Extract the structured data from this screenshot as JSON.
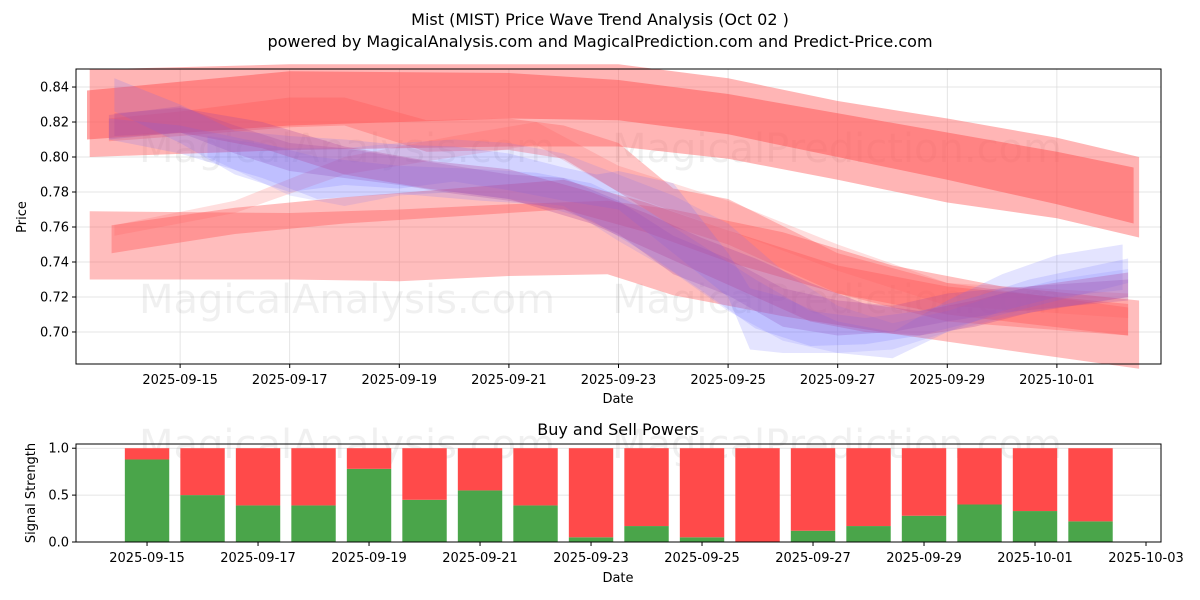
{
  "header": {
    "title": "Mist (MIST) Price Wave Trend Analysis (Oct 02 )",
    "subtitle": "powered by MagicalAnalysis.com and MagicalPrediction.com and Predict-Price.com"
  },
  "watermarks": [
    "MagicalAnalysis.com",
    "MagicalPrediction.com"
  ],
  "colors": {
    "sell_red": "#ff4a4a",
    "buy_green": "#4aa54a",
    "wave_red": "#ff5a5a",
    "wave_blue": "#6a6aff",
    "grid": "#dddddd"
  },
  "chart_data": [
    {
      "type": "area",
      "title": "",
      "xlabel": "Date",
      "ylabel": "Price",
      "x_start_date": "2025-09-15",
      "x_unit": "days since 2025-09-15",
      "xlim": [
        -1.9,
        17.9
      ],
      "ylim": [
        0.6817,
        0.8503
      ],
      "grid": true,
      "xticks": [
        {
          "x": 0,
          "label": "2025-09-15"
        },
        {
          "x": 2,
          "label": "2025-09-17"
        },
        {
          "x": 4,
          "label": "2025-09-19"
        },
        {
          "x": 6,
          "label": "2025-09-21"
        },
        {
          "x": 8,
          "label": "2025-09-23"
        },
        {
          "x": 10,
          "label": "2025-09-25"
        },
        {
          "x": 12,
          "label": "2025-09-27"
        },
        {
          "x": 14,
          "label": "2025-09-29"
        },
        {
          "x": 16,
          "label": "2025-10-01"
        }
      ],
      "yticks": [
        {
          "y": 0.7,
          "label": "0.70"
        },
        {
          "y": 0.72,
          "label": "0.72"
        },
        {
          "y": 0.74,
          "label": "0.74"
        },
        {
          "y": 0.76,
          "label": "0.76"
        },
        {
          "y": 0.78,
          "label": "0.78"
        },
        {
          "y": 0.8,
          "label": "0.80"
        },
        {
          "y": 0.82,
          "label": "0.82"
        },
        {
          "y": 0.84,
          "label": "0.84"
        }
      ],
      "bands": [
        {
          "name": "red-outer-top",
          "color": "red",
          "opacity": 0.45,
          "x": [
            -1.65,
            2,
            6,
            8,
            10,
            12,
            14,
            16,
            17.5
          ],
          "upper": [
            0.85,
            0.853,
            0.853,
            0.853,
            0.845,
            0.832,
            0.822,
            0.811,
            0.8
          ],
          "lower": [
            0.8,
            0.804,
            0.806,
            0.806,
            0.799,
            0.787,
            0.774,
            0.765,
            0.754
          ]
        },
        {
          "name": "red-inner-top",
          "color": "red",
          "opacity": 0.55,
          "x": [
            -1.7,
            2,
            6,
            8,
            10,
            12,
            14,
            16,
            17.4
          ],
          "upper": [
            0.838,
            0.849,
            0.848,
            0.844,
            0.836,
            0.825,
            0.814,
            0.803,
            0.794
          ],
          "lower": [
            0.81,
            0.818,
            0.822,
            0.821,
            0.813,
            0.8,
            0.787,
            0.773,
            0.762
          ]
        },
        {
          "name": "red-outer-low",
          "color": "red",
          "opacity": 0.4,
          "x": [
            -1.65,
            2,
            4,
            6,
            7.8,
            9,
            11,
            13,
            15,
            17.5
          ],
          "upper": [
            0.769,
            0.768,
            0.77,
            0.773,
            0.775,
            0.77,
            0.757,
            0.738,
            0.726,
            0.718
          ],
          "lower": [
            0.73,
            0.73,
            0.729,
            0.732,
            0.733,
            0.721,
            0.709,
            0.699,
            0.69,
            0.679
          ]
        },
        {
          "name": "red-mid-low",
          "color": "red",
          "opacity": 0.4,
          "x": [
            -1.25,
            1,
            3,
            5,
            7,
            8.5,
            10,
            12,
            14,
            17.3
          ],
          "upper": [
            0.761,
            0.771,
            0.777,
            0.782,
            0.787,
            0.774,
            0.758,
            0.738,
            0.726,
            0.716
          ],
          "lower": [
            0.745,
            0.756,
            0.762,
            0.766,
            0.77,
            0.757,
            0.74,
            0.722,
            0.71,
            0.698
          ]
        },
        {
          "name": "red-light-cross",
          "color": "red",
          "opacity": 0.2,
          "x": [
            -1.2,
            1,
            3,
            5,
            6.5,
            8,
            10,
            12,
            14,
            17.3
          ],
          "upper": [
            0.761,
            0.775,
            0.8,
            0.812,
            0.82,
            0.795,
            0.775,
            0.75,
            0.728,
            0.722
          ],
          "lower": [
            0.755,
            0.768,
            0.79,
            0.8,
            0.807,
            0.78,
            0.758,
            0.735,
            0.715,
            0.708
          ]
        },
        {
          "name": "pink-top-left",
          "color": "red",
          "opacity": 0.35,
          "x": [
            -1.3,
            0,
            2,
            3,
            4.5,
            6,
            7,
            8,
            9,
            10,
            12,
            14,
            17.3
          ],
          "upper": [
            0.822,
            0.826,
            0.834,
            0.834,
            0.821,
            0.822,
            0.818,
            0.808,
            0.782,
            0.776,
            0.745,
            0.728,
            0.714
          ],
          "lower": [
            0.809,
            0.812,
            0.817,
            0.818,
            0.803,
            0.804,
            0.799,
            0.78,
            0.76,
            0.75,
            0.722,
            0.706,
            0.698
          ]
        },
        {
          "name": "purple-1",
          "color": "purple",
          "opacity": 0.28,
          "x": [
            -1.3,
            0,
            1,
            2,
            3,
            4,
            5,
            6,
            7,
            8,
            9,
            10,
            11,
            12,
            13,
            14,
            15,
            17.3
          ],
          "upper": [
            0.824,
            0.829,
            0.818,
            0.808,
            0.805,
            0.8,
            0.795,
            0.79,
            0.788,
            0.775,
            0.755,
            0.742,
            0.725,
            0.718,
            0.715,
            0.722,
            0.725,
            0.73
          ],
          "lower": [
            0.81,
            0.814,
            0.802,
            0.792,
            0.788,
            0.784,
            0.779,
            0.775,
            0.77,
            0.756,
            0.733,
            0.721,
            0.703,
            0.698,
            0.7,
            0.706,
            0.711,
            0.718
          ]
        },
        {
          "name": "blue-1",
          "color": "blue",
          "opacity": 0.18,
          "x": [
            -1.2,
            0,
            1,
            2,
            3,
            4,
            5,
            6,
            7,
            7.6,
            8,
            9,
            10,
            10.4,
            11,
            12,
            13,
            14,
            15,
            16,
            17.2
          ],
          "upper": [
            0.845,
            0.83,
            0.815,
            0.812,
            0.81,
            0.807,
            0.806,
            0.802,
            0.794,
            0.79,
            0.792,
            0.785,
            0.745,
            0.725,
            0.72,
            0.706,
            0.7,
            0.718,
            0.733,
            0.744,
            0.75
          ],
          "lower": [
            0.826,
            0.808,
            0.79,
            0.78,
            0.784,
            0.782,
            0.786,
            0.781,
            0.775,
            0.772,
            0.77,
            0.745,
            0.72,
            0.69,
            0.688,
            0.688,
            0.685,
            0.7,
            0.712,
            0.72,
            0.724
          ]
        },
        {
          "name": "blue-2",
          "color": "blue",
          "opacity": 0.18,
          "x": [
            -1.3,
            0,
            1.5,
            2.5,
            4,
            5.5,
            6.5,
            7.5,
            8.5,
            9.5,
            10.5,
            11.5,
            12.5,
            13.5,
            14.5,
            15.5,
            17.3
          ],
          "upper": [
            0.822,
            0.818,
            0.808,
            0.8,
            0.795,
            0.793,
            0.791,
            0.785,
            0.77,
            0.75,
            0.73,
            0.712,
            0.708,
            0.712,
            0.72,
            0.73,
            0.742
          ],
          "lower": [
            0.81,
            0.802,
            0.788,
            0.776,
            0.779,
            0.775,
            0.773,
            0.764,
            0.745,
            0.724,
            0.702,
            0.692,
            0.693,
            0.698,
            0.706,
            0.714,
            0.728
          ]
        },
        {
          "name": "blue-3",
          "color": "blue",
          "opacity": 0.15,
          "x": [
            0.5,
            2,
            3,
            4,
            5,
            6,
            7,
            8,
            9,
            10,
            11,
            12,
            13,
            14,
            15,
            16,
            17.3
          ],
          "upper": [
            0.812,
            0.805,
            0.805,
            0.808,
            0.81,
            0.808,
            0.802,
            0.79,
            0.778,
            0.762,
            0.735,
            0.715,
            0.705,
            0.712,
            0.722,
            0.73,
            0.736
          ],
          "lower": [
            0.8,
            0.778,
            0.772,
            0.778,
            0.78,
            0.776,
            0.772,
            0.752,
            0.734,
            0.712,
            0.695,
            0.688,
            0.69,
            0.7,
            0.708,
            0.714,
            0.72
          ]
        },
        {
          "name": "magenta-1",
          "color": "purple",
          "opacity": 0.3,
          "x": [
            -1.2,
            0,
            1.5,
            3,
            4.5,
            6,
            7.5,
            8.5,
            9.5,
            10.5,
            11.5,
            12.5,
            13.5,
            14.5,
            15.5,
            17.3
          ],
          "upper": [
            0.825,
            0.828,
            0.82,
            0.806,
            0.798,
            0.793,
            0.78,
            0.768,
            0.754,
            0.742,
            0.728,
            0.716,
            0.712,
            0.718,
            0.726,
            0.734
          ],
          "lower": [
            0.812,
            0.814,
            0.805,
            0.79,
            0.782,
            0.776,
            0.762,
            0.748,
            0.734,
            0.72,
            0.706,
            0.7,
            0.698,
            0.703,
            0.711,
            0.72
          ]
        }
      ]
    },
    {
      "type": "bar",
      "title": "Buy and Sell Powers",
      "xlabel": "Date",
      "ylabel": "Signal Strength",
      "x_start_date": "2025-09-15",
      "xlim": [
        -1.28,
        18.27
      ],
      "ylim": [
        0,
        1.045
      ],
      "grid": true,
      "stacked": true,
      "categories": [
        "2025-09-15",
        "2025-09-16",
        "2025-09-17",
        "2025-09-18",
        "2025-09-19",
        "2025-09-20",
        "2025-09-21",
        "2025-09-22",
        "2025-09-23",
        "2025-09-24",
        "2025-09-25",
        "2025-09-26",
        "2025-09-27",
        "2025-09-28",
        "2025-09-29",
        "2025-09-30",
        "2025-10-01",
        "2025-10-02"
      ],
      "series": [
        {
          "name": "Buy",
          "color": "green",
          "values": [
            0.88,
            0.5,
            0.39,
            0.39,
            0.78,
            0.45,
            0.55,
            0.39,
            0.05,
            0.17,
            0.05,
            0.0,
            0.12,
            0.17,
            0.28,
            0.4,
            0.33,
            0.22
          ]
        },
        {
          "name": "Sell",
          "color": "red",
          "values": [
            0.12,
            0.5,
            0.61,
            0.61,
            0.22,
            0.55,
            0.45,
            0.61,
            0.95,
            0.83,
            0.95,
            1.0,
            0.88,
            0.83,
            0.72,
            0.6,
            0.67,
            0.78
          ]
        }
      ],
      "xticks": [
        {
          "x": 0,
          "label": "2025-09-15"
        },
        {
          "x": 2,
          "label": "2025-09-17"
        },
        {
          "x": 4,
          "label": "2025-09-19"
        },
        {
          "x": 6,
          "label": "2025-09-21"
        },
        {
          "x": 8,
          "label": "2025-09-23"
        },
        {
          "x": 10,
          "label": "2025-09-25"
        },
        {
          "x": 12,
          "label": "2025-09-27"
        },
        {
          "x": 14,
          "label": "2025-09-29"
        },
        {
          "x": 16,
          "label": "2025-10-01"
        },
        {
          "x": 18,
          "label": "2025-10-03"
        }
      ],
      "yticks": [
        {
          "y": 0.0,
          "label": "0.0"
        },
        {
          "y": 0.5,
          "label": "0.5"
        },
        {
          "y": 1.0,
          "label": "1.0"
        }
      ]
    }
  ]
}
